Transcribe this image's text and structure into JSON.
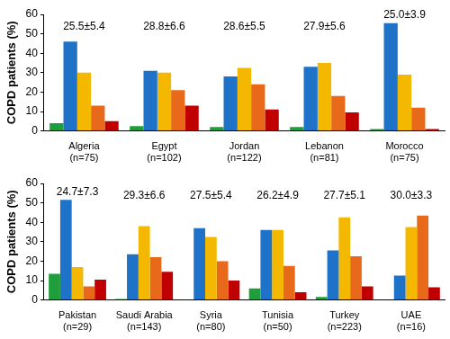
{
  "chart_data": [
    {
      "type": "bar",
      "y_label": "COPD patients (%)",
      "categories": [
        "Algeria\n(n=75)",
        "Egypt\n(n=102)",
        "Jordan\n(n=122)",
        "Lebanon\n(n=81)",
        "Morocco\n(n=75)"
      ],
      "series": [
        {
          "color": "#1f9e3c",
          "values": [
            4,
            2.5,
            2,
            2,
            1
          ]
        },
        {
          "color": "#1e73c8",
          "values": [
            46,
            31,
            28,
            33,
            55.5
          ]
        },
        {
          "color": "#f5b800",
          "values": [
            30,
            30,
            32.5,
            35,
            29
          ]
        },
        {
          "color": "#e8691a",
          "values": [
            13,
            21,
            24,
            18,
            12
          ]
        },
        {
          "color": "#c00000",
          "values": [
            5,
            13,
            11,
            9.5,
            1
          ]
        }
      ],
      "annotations": [
        "25.5±5.4",
        "28.8±6.6",
        "28.6±5.5",
        "27.9±5.6",
        "25.0±3.9"
      ],
      "ylim": [
        0,
        60
      ],
      "yticks": [
        0,
        10,
        20,
        30,
        40,
        50,
        60
      ],
      "grid": false
    },
    {
      "type": "bar",
      "y_label": "COPD patients (%)",
      "categories": [
        "Pakistan\n(n=29)",
        "Saudi Arabia\n(n=143)",
        "Syria\n(n=80)",
        "Tunisia\n(n=50)",
        "Turkey\n(n=223)",
        "UAE\n(n=16)"
      ],
      "series": [
        {
          "color": "#1f9e3c",
          "values": [
            13.5,
            0.5,
            0,
            6,
            1.5,
            0
          ]
        },
        {
          "color": "#1e73c8",
          "values": [
            51.5,
            23.5,
            37,
            36,
            25.5,
            12.5
          ]
        },
        {
          "color": "#f5b800",
          "values": [
            17,
            38,
            32.5,
            36,
            42.5,
            37.5
          ]
        },
        {
          "color": "#e8691a",
          "values": [
            7,
            22,
            20,
            17.5,
            22.5,
            43.5
          ]
        },
        {
          "color": "#c00000",
          "values": [
            10.5,
            14.5,
            10,
            4,
            7,
            6.5
          ]
        }
      ],
      "annotations": [
        "24.7±7.3",
        "29.3±6.6",
        "27.5±5.4",
        "26.2±4.9",
        "27.7±5.1",
        "30.0±3.3"
      ],
      "ylim": [
        0,
        60
      ],
      "yticks": [
        0,
        10,
        20,
        30,
        40,
        50,
        60
      ],
      "grid": false
    }
  ]
}
